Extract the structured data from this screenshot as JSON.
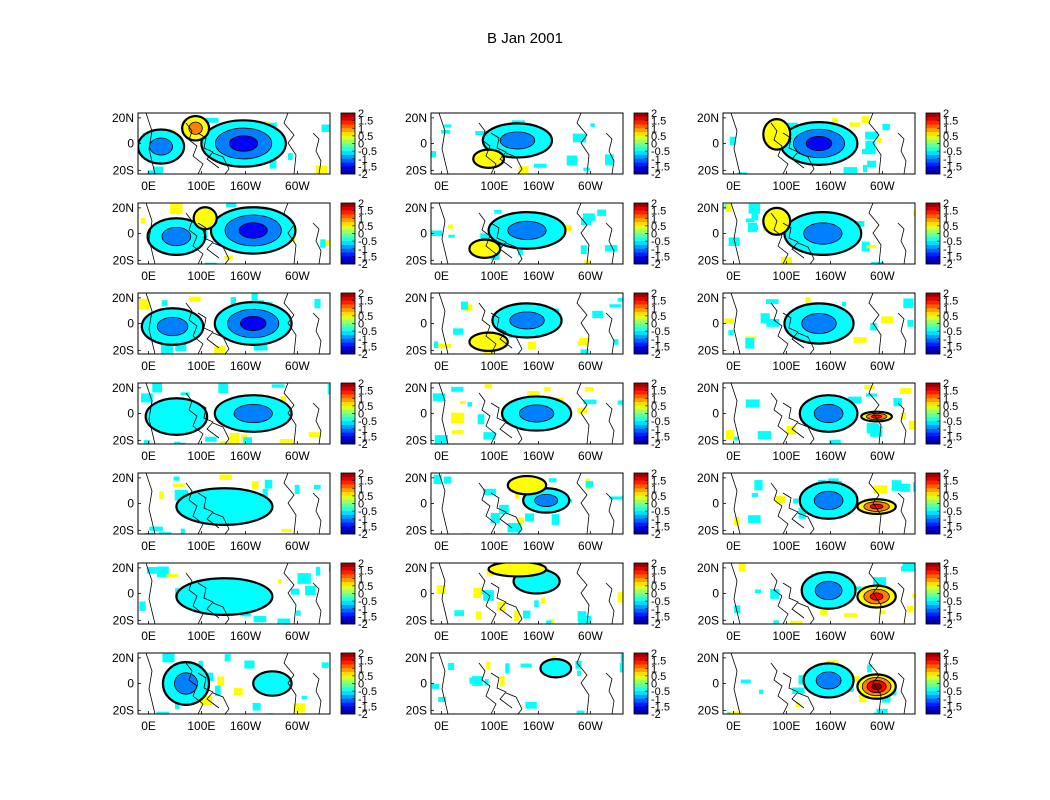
{
  "figure": {
    "title": "B Jan 2001"
  },
  "chart_data": {
    "type": "heatmap",
    "title": "B Jan 2001",
    "grid": {
      "rows": 7,
      "cols": 3
    },
    "map": {
      "x_tick_labels": [
        "0E",
        "100E",
        "160W",
        "60W"
      ],
      "y_tick_labels": [
        "20N",
        "0",
        "20S"
      ],
      "lat_range": [
        -20,
        20
      ]
    },
    "colorbar": {
      "range": [
        -2,
        2
      ],
      "tick_labels": [
        "2",
        "1.5",
        "1",
        "0.5",
        "0",
        "-0.5",
        "-1",
        "-1.5",
        "-2"
      ],
      "colormap": "jet"
    },
    "colors": {
      "negative_light": "#7ff5f5",
      "negative_mid": "#30b0f0",
      "negative_strong": "#1060e0",
      "positive_light": "#e6f000",
      "positive_mid": "#f0a000",
      "positive_strong": "#b01000",
      "contour": "#000000"
    },
    "panels": [
      {
        "row": 1,
        "col": 1,
        "blobs": [
          {
            "x": 0.12,
            "y": 0.55,
            "rx": 0.12,
            "ry": 0.28,
            "v": -0.8
          },
          {
            "x": 0.55,
            "y": 0.5,
            "rx": 0.22,
            "ry": 0.38,
            "v": -1.2
          },
          {
            "x": 0.3,
            "y": 0.25,
            "rx": 0.07,
            "ry": 0.2,
            "v": 0.6
          }
        ]
      },
      {
        "row": 1,
        "col": 2,
        "blobs": [
          {
            "x": 0.45,
            "y": 0.45,
            "rx": 0.18,
            "ry": 0.28,
            "v": -0.9
          },
          {
            "x": 0.3,
            "y": 0.75,
            "rx": 0.08,
            "ry": 0.15,
            "v": 0.4
          }
        ]
      },
      {
        "row": 1,
        "col": 3,
        "blobs": [
          {
            "x": 0.5,
            "y": 0.5,
            "rx": 0.2,
            "ry": 0.35,
            "v": -1.1
          },
          {
            "x": 0.28,
            "y": 0.35,
            "rx": 0.07,
            "ry": 0.25,
            "v": 0.5
          }
        ]
      },
      {
        "row": 2,
        "col": 1,
        "blobs": [
          {
            "x": 0.2,
            "y": 0.55,
            "rx": 0.15,
            "ry": 0.3,
            "v": -0.9
          },
          {
            "x": 0.6,
            "y": 0.45,
            "rx": 0.22,
            "ry": 0.38,
            "v": -1.1
          },
          {
            "x": 0.35,
            "y": 0.25,
            "rx": 0.06,
            "ry": 0.18,
            "v": 0.5
          }
        ]
      },
      {
        "row": 2,
        "col": 2,
        "blobs": [
          {
            "x": 0.5,
            "y": 0.45,
            "rx": 0.2,
            "ry": 0.3,
            "v": -1.0
          },
          {
            "x": 0.28,
            "y": 0.75,
            "rx": 0.08,
            "ry": 0.15,
            "v": 0.4
          }
        ]
      },
      {
        "row": 2,
        "col": 3,
        "blobs": [
          {
            "x": 0.52,
            "y": 0.5,
            "rx": 0.2,
            "ry": 0.35,
            "v": -1.0
          },
          {
            "x": 0.28,
            "y": 0.3,
            "rx": 0.07,
            "ry": 0.22,
            "v": 0.5
          }
        ]
      },
      {
        "row": 3,
        "col": 1,
        "blobs": [
          {
            "x": 0.18,
            "y": 0.55,
            "rx": 0.16,
            "ry": 0.3,
            "v": -0.7
          },
          {
            "x": 0.6,
            "y": 0.5,
            "rx": 0.2,
            "ry": 0.35,
            "v": -1.1
          }
        ]
      },
      {
        "row": 3,
        "col": 2,
        "blobs": [
          {
            "x": 0.5,
            "y": 0.45,
            "rx": 0.18,
            "ry": 0.28,
            "v": -1.0
          },
          {
            "x": 0.3,
            "y": 0.8,
            "rx": 0.1,
            "ry": 0.15,
            "v": 0.4
          }
        ]
      },
      {
        "row": 3,
        "col": 3,
        "blobs": [
          {
            "x": 0.5,
            "y": 0.5,
            "rx": 0.18,
            "ry": 0.33,
            "v": -0.9
          }
        ]
      },
      {
        "row": 4,
        "col": 1,
        "blobs": [
          {
            "x": 0.2,
            "y": 0.55,
            "rx": 0.16,
            "ry": 0.3,
            "v": -0.5
          },
          {
            "x": 0.6,
            "y": 0.5,
            "rx": 0.2,
            "ry": 0.3,
            "v": -0.7
          }
        ]
      },
      {
        "row": 4,
        "col": 2,
        "blobs": [
          {
            "x": 0.55,
            "y": 0.5,
            "rx": 0.18,
            "ry": 0.28,
            "v": -0.7
          }
        ]
      },
      {
        "row": 4,
        "col": 3,
        "blobs": [
          {
            "x": 0.55,
            "y": 0.5,
            "rx": 0.15,
            "ry": 0.3,
            "v": -0.8
          },
          {
            "x": 0.8,
            "y": 0.55,
            "rx": 0.08,
            "ry": 0.08,
            "v": 1.1
          }
        ]
      },
      {
        "row": 5,
        "col": 1,
        "blobs": [
          {
            "x": 0.45,
            "y": 0.55,
            "rx": 0.25,
            "ry": 0.3,
            "v": -0.5
          }
        ]
      },
      {
        "row": 5,
        "col": 2,
        "blobs": [
          {
            "x": 0.6,
            "y": 0.45,
            "rx": 0.12,
            "ry": 0.2,
            "v": -0.6
          },
          {
            "x": 0.5,
            "y": 0.2,
            "rx": 0.1,
            "ry": 0.15,
            "v": 0.4
          }
        ]
      },
      {
        "row": 5,
        "col": 3,
        "blobs": [
          {
            "x": 0.55,
            "y": 0.45,
            "rx": 0.15,
            "ry": 0.3,
            "v": -0.8
          },
          {
            "x": 0.8,
            "y": 0.55,
            "rx": 0.1,
            "ry": 0.12,
            "v": 1.3
          }
        ]
      },
      {
        "row": 6,
        "col": 1,
        "blobs": [
          {
            "x": 0.45,
            "y": 0.55,
            "rx": 0.25,
            "ry": 0.3,
            "v": -0.5
          }
        ]
      },
      {
        "row": 6,
        "col": 2,
        "blobs": [
          {
            "x": 0.55,
            "y": 0.3,
            "rx": 0.12,
            "ry": 0.2,
            "v": -0.5
          },
          {
            "x": 0.45,
            "y": 0.1,
            "rx": 0.15,
            "ry": 0.12,
            "v": 0.4
          }
        ]
      },
      {
        "row": 6,
        "col": 3,
        "blobs": [
          {
            "x": 0.55,
            "y": 0.45,
            "rx": 0.14,
            "ry": 0.3,
            "v": -0.7
          },
          {
            "x": 0.8,
            "y": 0.55,
            "rx": 0.1,
            "ry": 0.18,
            "v": 1.5
          }
        ]
      },
      {
        "row": 7,
        "col": 1,
        "blobs": [
          {
            "x": 0.25,
            "y": 0.5,
            "rx": 0.12,
            "ry": 0.35,
            "v": -0.6
          },
          {
            "x": 0.7,
            "y": 0.5,
            "rx": 0.1,
            "ry": 0.2,
            "v": -0.4
          }
        ]
      },
      {
        "row": 7,
        "col": 2,
        "blobs": [
          {
            "x": 0.65,
            "y": 0.25,
            "rx": 0.08,
            "ry": 0.15,
            "v": -0.4
          }
        ]
      },
      {
        "row": 7,
        "col": 3,
        "blobs": [
          {
            "x": 0.55,
            "y": 0.45,
            "rx": 0.13,
            "ry": 0.28,
            "v": -0.7
          },
          {
            "x": 0.8,
            "y": 0.55,
            "rx": 0.1,
            "ry": 0.2,
            "v": 1.8
          }
        ]
      }
    ]
  }
}
